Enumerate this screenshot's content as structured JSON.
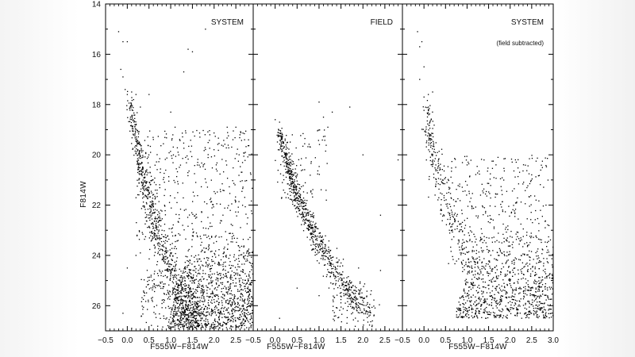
{
  "chart_data": {
    "type": "scatter",
    "ylabel": "F814W",
    "xlabel": "F555W−F814W",
    "y_reversed": true,
    "panels": [
      {
        "label": "SYSTEM",
        "sublabel": "",
        "xlim": [
          -0.5,
          2.9
        ],
        "ylim": [
          14,
          27
        ],
        "xticks": [
          "−0.5",
          "0.0",
          "0.5",
          "1.0",
          "1.5",
          "2.0",
          "2.5"
        ],
        "show_xlabel": true,
        "show_ylabel": true,
        "points": [
          {
            "x": -0.2,
            "y": 15.1
          },
          {
            "x": -0.1,
            "y": 15.5
          },
          {
            "x": 0.0,
            "y": 15.5
          },
          {
            "x": -0.15,
            "y": 16.6
          },
          {
            "x": -0.1,
            "y": 16.9
          },
          {
            "x": -0.05,
            "y": 17.4
          },
          {
            "x": 0.0,
            "y": 17.6
          },
          {
            "x": 0.1,
            "y": 17.5
          },
          {
            "x": 0.2,
            "y": 17.6
          },
          {
            "x": 1.4,
            "y": 15.8
          },
          {
            "x": 1.5,
            "y": 15.9
          },
          {
            "x": 1.3,
            "y": 16.7
          },
          {
            "x": 1.8,
            "y": 15.0
          },
          {
            "x": 0.5,
            "y": 17.6
          },
          {
            "x": 2.3,
            "y": 18.9
          },
          {
            "x": 2.5,
            "y": 18.9
          },
          {
            "x": 1.0,
            "y": 18.3
          },
          {
            "x": 1.1,
            "y": 18.9
          },
          {
            "x": 0.3,
            "y": 18.1
          },
          {
            "x": 1.9,
            "y": 19.2
          },
          {
            "x": 2.7,
            "y": 19.4
          },
          {
            "x": 0.0,
            "y": 24.5
          },
          {
            "x": -0.1,
            "y": 26.3
          },
          {
            "x": 0.1,
            "y": 26.9
          },
          {
            "x": 0.4,
            "y": 25.5
          },
          {
            "x": 0.2,
            "y": 24.0
          },
          {
            "x": 0.3,
            "y": 23.9
          }
        ],
        "distribution": [
          {
            "kind": "ridge",
            "count": 720,
            "x0": 0.05,
            "y0": 17.8,
            "x1": 1.55,
            "y1": 26.9,
            "bend": -0.35,
            "sx": 0.1,
            "sy": 0.15
          },
          {
            "kind": "cloud",
            "count": 1150,
            "xmin": 0.9,
            "xmax": 2.9,
            "ymin": 23.0,
            "ymax": 26.9,
            "skew": 1.0
          },
          {
            "kind": "cloud",
            "count": 420,
            "xmin": 0.2,
            "xmax": 2.9,
            "ymin": 19.0,
            "ymax": 23.5,
            "skew": 0.0
          },
          {
            "kind": "cloud",
            "count": 180,
            "xmin": 0.3,
            "xmax": 1.5,
            "ymin": 24.5,
            "ymax": 26.9,
            "skew": 0.0
          }
        ]
      },
      {
        "label": "FIELD",
        "sublabel": "",
        "xlim": [
          -0.5,
          2.9
        ],
        "ylim": [
          14,
          27
        ],
        "xticks": [
          "−0.5",
          "0.0",
          "0.5",
          "1.0",
          "1.5",
          "2.0",
          "2.5"
        ],
        "show_xlabel": true,
        "show_ylabel": false,
        "points": [
          {
            "x": 0.0,
            "y": 18.6
          },
          {
            "x": 0.1,
            "y": 18.7
          },
          {
            "x": 1.0,
            "y": 17.9
          },
          {
            "x": 1.1,
            "y": 18.5
          },
          {
            "x": 1.2,
            "y": 18.9
          },
          {
            "x": 1.3,
            "y": 18.3
          },
          {
            "x": 1.7,
            "y": 18.1
          },
          {
            "x": 2.0,
            "y": 20.0
          },
          {
            "x": 2.8,
            "y": 20.2
          },
          {
            "x": 2.4,
            "y": 22.4
          },
          {
            "x": 1.9,
            "y": 24.5
          },
          {
            "x": 1.5,
            "y": 24.3
          },
          {
            "x": 2.4,
            "y": 24.6
          },
          {
            "x": 1.0,
            "y": 25.6
          },
          {
            "x": 0.5,
            "y": 25.3
          },
          {
            "x": 0.1,
            "y": 26.5
          },
          {
            "x": 0.8,
            "y": 26.9
          }
        ],
        "distribution": [
          {
            "kind": "ridge",
            "count": 760,
            "x0": 0.1,
            "y0": 19.0,
            "x1": 2.05,
            "y1": 26.3,
            "bend": -0.55,
            "sx": 0.09,
            "sy": 0.12
          },
          {
            "kind": "cloud",
            "count": 90,
            "xmin": 0.0,
            "xmax": 1.2,
            "ymin": 19.0,
            "ymax": 22.0,
            "skew": 0.0
          },
          {
            "kind": "cloud",
            "count": 90,
            "xmin": 1.3,
            "xmax": 2.3,
            "ymin": 25.0,
            "ymax": 26.9,
            "skew": 0.0
          }
        ]
      },
      {
        "label": "SYSTEM",
        "sublabel": "(field subtracted)",
        "xlim": [
          -0.5,
          3.0
        ],
        "ylim": [
          14,
          27
        ],
        "xticks": [
          "−0.5",
          "0.0",
          "0.5",
          "1.0",
          "1.5",
          "2.0",
          "2.5",
          "3.0"
        ],
        "show_xlabel": true,
        "show_ylabel": false,
        "points": [
          {
            "x": -0.15,
            "y": 15.1
          },
          {
            "x": -0.1,
            "y": 15.7
          },
          {
            "x": -0.05,
            "y": 15.5
          },
          {
            "x": 0.0,
            "y": 16.5
          },
          {
            "x": -0.1,
            "y": 17.0
          },
          {
            "x": 0.1,
            "y": 17.6
          },
          {
            "x": 0.0,
            "y": 17.7
          },
          {
            "x": 0.2,
            "y": 17.5
          },
          {
            "x": 0.1,
            "y": 18.2
          },
          {
            "x": 1.0,
            "y": 20.4
          },
          {
            "x": 2.6,
            "y": 21.8
          },
          {
            "x": 0.5,
            "y": 20.9
          }
        ],
        "distribution": [
          {
            "kind": "ridge",
            "count": 300,
            "x0": 0.05,
            "y0": 18.0,
            "x1": 1.1,
            "y1": 24.5,
            "bend": -0.3,
            "sx": 0.12,
            "sy": 0.2
          },
          {
            "kind": "cloud",
            "count": 900,
            "xmin": 0.7,
            "xmax": 3.0,
            "ymin": 22.8,
            "ymax": 26.5,
            "skew": 1.0
          },
          {
            "kind": "cloud",
            "count": 260,
            "xmin": 0.6,
            "xmax": 2.9,
            "ymin": 20.0,
            "ymax": 23.5,
            "skew": 0.0
          }
        ]
      }
    ],
    "yticks": [
      14,
      16,
      18,
      20,
      22,
      24,
      26
    ]
  }
}
